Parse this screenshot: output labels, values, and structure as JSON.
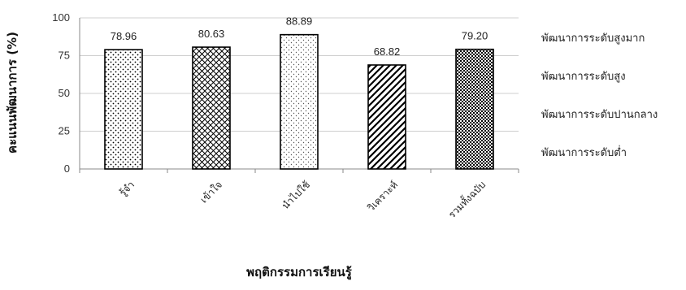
{
  "chart_data": {
    "type": "bar",
    "categories": [
      "รู้จำ",
      "เข้าใจ",
      "นำไปใช้",
      "วิเคราะห์",
      "รวมทั้งฉบับ"
    ],
    "values": [
      78.96,
      80.63,
      88.89,
      68.82,
      79.2
    ],
    "value_labels": [
      "78.96",
      "80.63",
      "88.89",
      "68.82",
      "79.20"
    ],
    "xlabel": "พฤติกรรมการเรียนรู้",
    "ylabel": "คะแนนพัฒนาการ (%)",
    "ylim": [
      0,
      100
    ],
    "yticks": [
      "0",
      "25",
      "50",
      "75",
      "100"
    ],
    "grid": true,
    "bar_fills": [
      "dots",
      "crosshatch",
      "sparse-dots",
      "diagonal-stripes",
      "dense-dots"
    ]
  },
  "levels": [
    "พัฒนาการระดับสูงมาก",
    "พัฒนาการระดับสูง",
    "พัฒนาการระดับปานกลาง",
    "พัฒนาการระดับต่ำ"
  ]
}
